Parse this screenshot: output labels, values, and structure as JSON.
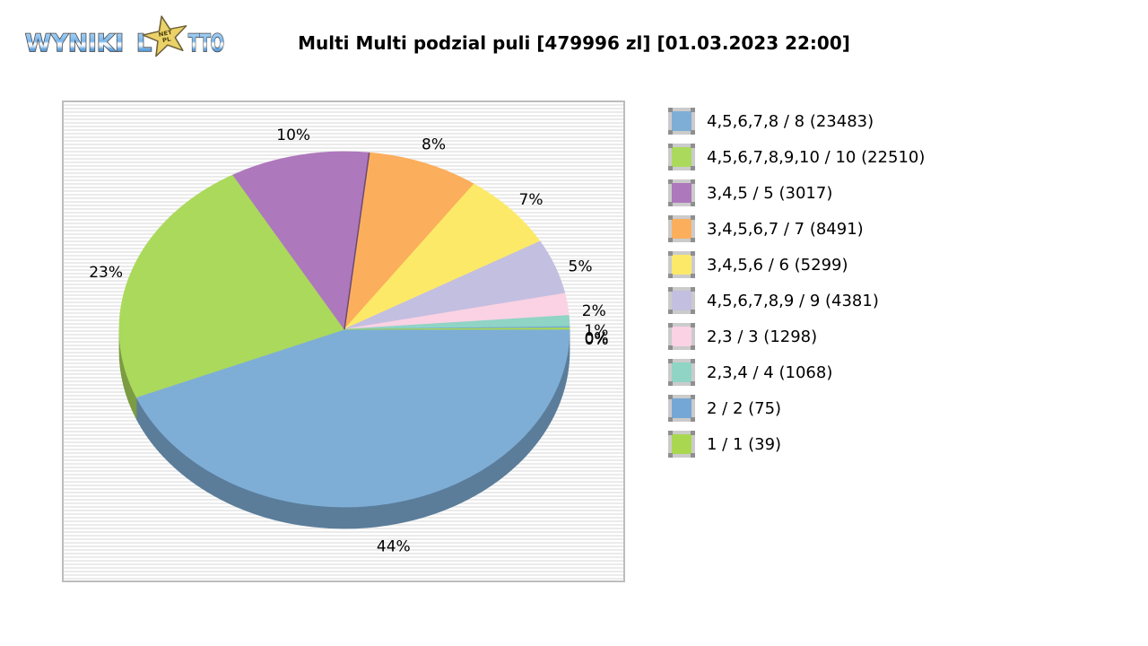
{
  "logo": {
    "word1": "WYNIKI",
    "word2_start": "L",
    "word2_end": "TTO",
    "star_line1": "NET",
    "star_line2": "PL"
  },
  "title": "Multi Multi podzial puli [479996 zl] [01.03.2023 22:00]",
  "chart_data": {
    "type": "pie",
    "style": "3d",
    "title": "Multi Multi podzial puli [479996 zl] [01.03.2023 22:00]",
    "pool_label": "479996 zl",
    "draw_datetime": "01.03.2023 22:00",
    "legend_position": "right",
    "start_angle_deg": 0,
    "direction": "clockwise",
    "series": [
      {
        "label": "4,5,6,7,8 / 8 (23483)",
        "winners": 23483,
        "percent": 44,
        "pct_label": "44%",
        "color": "#7EAED6"
      },
      {
        "label": "4,5,6,7,8,9,10 / 10 (22510)",
        "winners": 22510,
        "percent": 23,
        "pct_label": "23%",
        "color": "#ABD95C"
      },
      {
        "label": "3,4,5 / 5 (3017)",
        "winners": 3017,
        "percent": 10,
        "pct_label": "10%",
        "color": "#AE78BC"
      },
      {
        "label": "3,4,5,6,7 / 7 (8491)",
        "winners": 8491,
        "percent": 8,
        "pct_label": "8%",
        "color": "#FBAE5C"
      },
      {
        "label": "3,4,5,6 / 6 (5299)",
        "winners": 5299,
        "percent": 7,
        "pct_label": "7%",
        "color": "#FCE968"
      },
      {
        "label": "4,5,6,7,8,9 / 9 (4381)",
        "winners": 4381,
        "percent": 5,
        "pct_label": "5%",
        "color": "#C3BFE0"
      },
      {
        "label": "2,3 / 3 (1298)",
        "winners": 1298,
        "percent": 2,
        "pct_label": "2%",
        "color": "#FAD2E4"
      },
      {
        "label": "2,3,4 / 4 (1068)",
        "winners": 1068,
        "percent": 1,
        "pct_label": "1%",
        "color": "#8FD4C5"
      },
      {
        "label": "2 / 2 (75)",
        "winners": 75,
        "percent": 0,
        "pct_label": "0%",
        "color": "#74A7D6"
      },
      {
        "label": "1 / 1 (39)",
        "winners": 39,
        "percent": 0,
        "pct_label": "0%",
        "color": "#A9D850"
      }
    ]
  }
}
